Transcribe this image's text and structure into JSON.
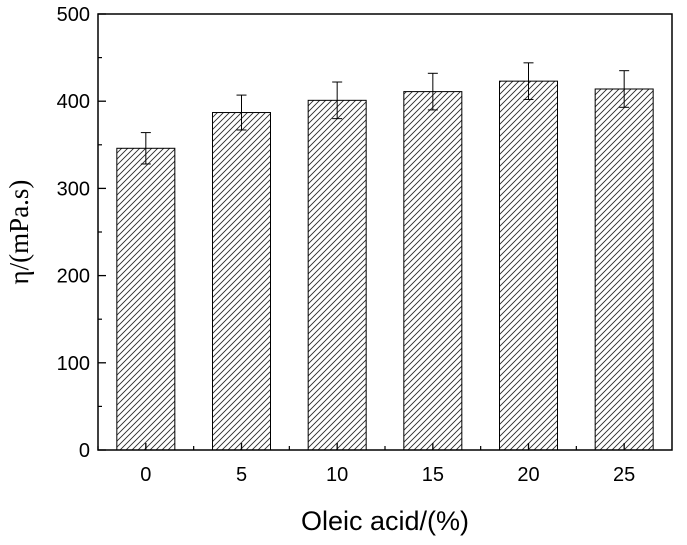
{
  "chart_data": {
    "type": "bar",
    "title": "",
    "xlabel": "Oleic acid/(%)",
    "ylabel": "η/(mPa.s)",
    "categories": [
      "0",
      "5",
      "10",
      "15",
      "20",
      "25"
    ],
    "values": [
      346,
      387,
      401,
      411,
      423,
      414
    ],
    "error": [
      18,
      20,
      21,
      21,
      21,
      21
    ],
    "ylim": [
      0,
      500
    ],
    "yticks": [
      0,
      100,
      200,
      300,
      400,
      500
    ],
    "ytick_labels": [
      "0",
      "100",
      "200",
      "300",
      "400",
      "500"
    ],
    "grid": false,
    "legend": "none",
    "bar_fill": "diagonal-hatch",
    "colors": {
      "bar_stroke": "#000000",
      "hatch": "#2b2b2b",
      "axis": "#000000",
      "background": "#ffffff"
    }
  }
}
